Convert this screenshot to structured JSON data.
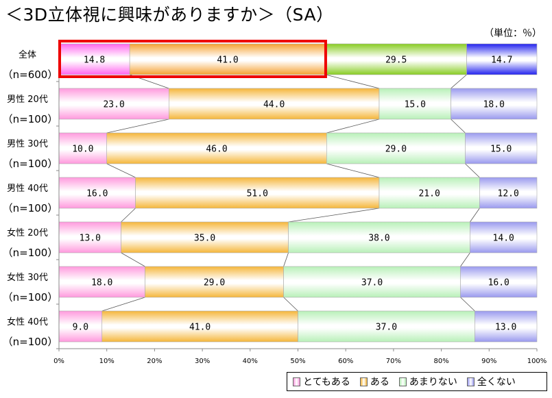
{
  "title": "＜3D立体視に興味がありますか＞（SA）",
  "unit_label": "（単位：％）",
  "chart_data": {
    "type": "bar",
    "orientation": "horizontal-stacked-100",
    "categories": [
      {
        "label": "全体",
        "n": "（n=600）"
      },
      {
        "label": "男性 20代",
        "n": "（n=100）"
      },
      {
        "label": "男性 30代",
        "n": "（n=100）"
      },
      {
        "label": "男性 40代",
        "n": "（n=100）"
      },
      {
        "label": "女性 20代",
        "n": "（n=100）"
      },
      {
        "label": "女性 30代",
        "n": "（n=100）"
      },
      {
        "label": "女性 40代",
        "n": "（n=100）"
      }
    ],
    "series": [
      {
        "name": "とてもある",
        "color": "#ff99dd",
        "values": [
          14.8,
          23.0,
          10.0,
          16.0,
          13.0,
          18.0,
          9.0
        ],
        "labels": [
          "14.8",
          "23.0",
          "10.0",
          "16.0",
          "13.0",
          "18.0",
          "9.0"
        ]
      },
      {
        "name": "ある",
        "color": "#f5b63a",
        "values": [
          41.0,
          44.0,
          46.0,
          51.0,
          35.0,
          29.0,
          41.0
        ],
        "labels": [
          "41.0",
          "44.0",
          "46.0",
          "51.0",
          "35.0",
          "29.0",
          "41.0"
        ]
      },
      {
        "name": "あまりない",
        "color": "#b8f0b8",
        "values": [
          29.5,
          15.0,
          29.0,
          21.0,
          38.0,
          37.0,
          37.0
        ],
        "labels": [
          "29.5",
          "15.0",
          "29.0",
          "21.0",
          "38.0",
          "37.0",
          "37.0"
        ]
      },
      {
        "name": "全くない",
        "color": "#9999ee",
        "values": [
          14.7,
          18.0,
          15.0,
          12.0,
          14.0,
          16.0,
          13.0
        ],
        "labels": [
          "14.7",
          "18.0",
          "15.0",
          "12.0",
          "14.0",
          "16.0",
          "13.0"
        ]
      }
    ],
    "overall_bar_colors": [
      "#ff66ee",
      "#f5a030",
      "#88cc22",
      "#2222ee"
    ],
    "x_ticks": [
      "0%",
      "10%",
      "20%",
      "30%",
      "40%",
      "50%",
      "60%",
      "70%",
      "80%",
      "90%",
      "100%"
    ],
    "xlim": [
      0,
      100
    ],
    "highlight": {
      "row": 0,
      "from": 0,
      "to": 55.8,
      "color": "#ee0000"
    },
    "legend_position": "bottom-right"
  }
}
